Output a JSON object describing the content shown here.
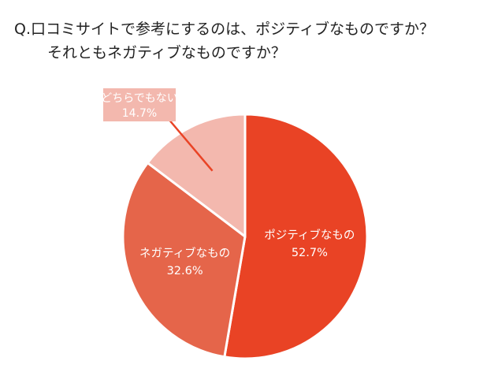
{
  "question": {
    "line1": "Q.口コミサイトで参考にするのは、ポジティブなものですか？",
    "line2": "それともネガティブなものですか？"
  },
  "chart_data": {
    "type": "pie",
    "title": "Q.口コミサイトで参考にするのは、ポジティブなものですか？それともネガティブなものですか？",
    "unit": "%",
    "slices": [
      {
        "label": "ポジティブなもの",
        "value": 52.7,
        "value_label": "52.7%",
        "color": "#E94325"
      },
      {
        "label": "ネガティブなもの",
        "value": 32.6,
        "value_label": "32.6%",
        "color": "#E5654A"
      },
      {
        "label": "どちらでもない",
        "value": 14.7,
        "value_label": "14.7%",
        "color": "#F3B8AE"
      }
    ],
    "start_angle_deg": 0,
    "direction": "clockwise",
    "label_positions": [
      "inside",
      "inside",
      "callout"
    ]
  }
}
